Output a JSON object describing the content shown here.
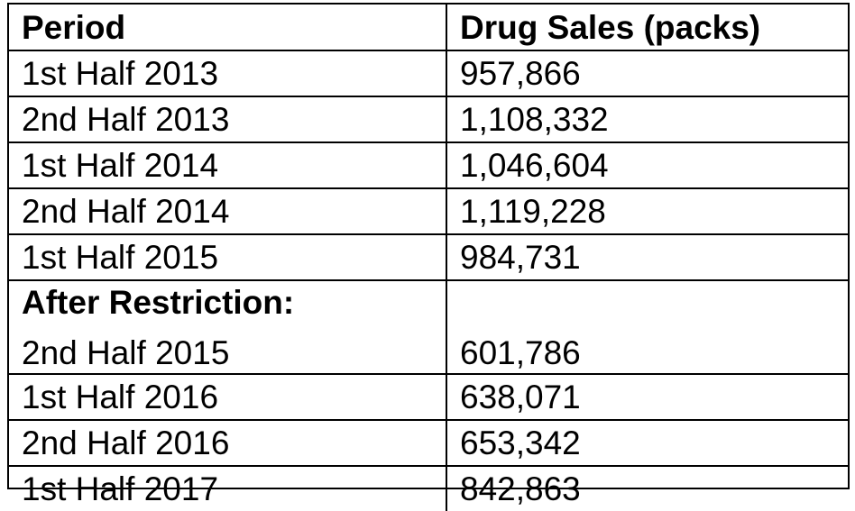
{
  "table": {
    "headers": [
      "Period",
      "Drug Sales (packs)"
    ],
    "rows_before": [
      {
        "period": "1st Half 2013",
        "sales": "957,866"
      },
      {
        "period": "2nd Half 2013",
        "sales": "1,108,332"
      },
      {
        "period": "1st Half 2014",
        "sales": "1,046,604"
      },
      {
        "period": "2nd Half 2014",
        "sales": "1,119,228"
      },
      {
        "period": "1st Half 2015",
        "sales": "984,731"
      }
    ],
    "section_label": "After Restriction:",
    "rows_after": [
      {
        "period": "2nd Half 2015",
        "sales": "601,786"
      },
      {
        "period": "1st Half 2016",
        "sales": "638,071"
      },
      {
        "period": "2nd Half 2016",
        "sales": "653,342"
      },
      {
        "period": "1st Half 2017",
        "sales": "842,863"
      }
    ]
  }
}
